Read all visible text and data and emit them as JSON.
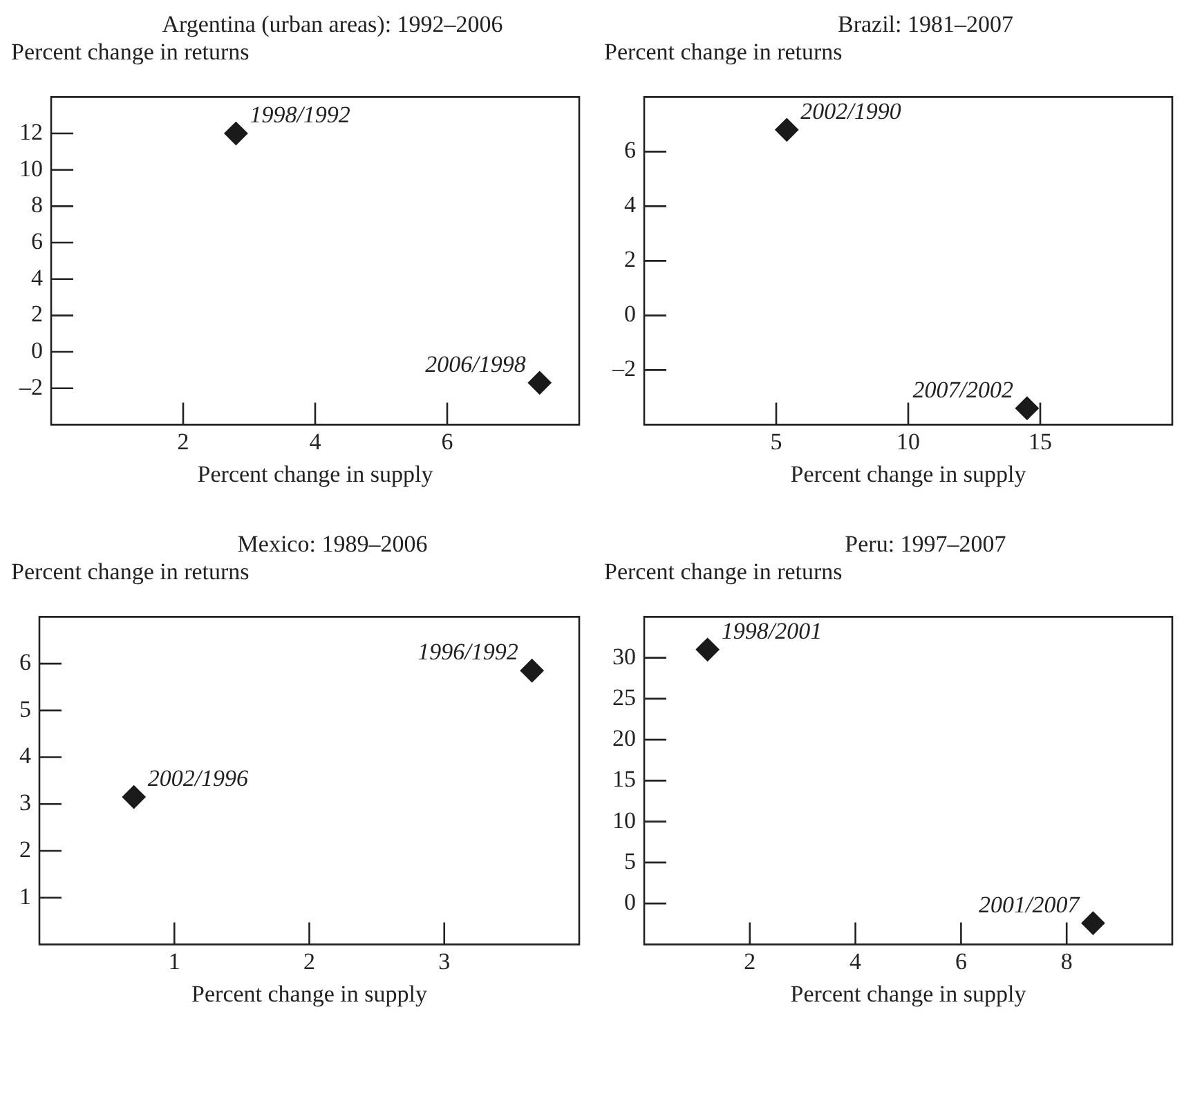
{
  "chart_data": [
    {
      "type": "scatter",
      "title": "Argentina (urban areas): 1992–2006",
      "xlabel": "Percent change in supply",
      "ylabel": "Percent change in returns",
      "marker": "diamond",
      "grid": false,
      "legend": false,
      "series": [
        {
          "color": "#1a1a1a",
          "x": [
            2.8,
            7.4
          ],
          "values": [
            12,
            -1.7
          ]
        }
      ],
      "xlim": [
        0,
        8
      ],
      "xticks": [
        2,
        4,
        6
      ],
      "ylim": [
        -4,
        14
      ],
      "yticks": [
        {
          "value": -2,
          "label": "–2"
        },
        0,
        2,
        4,
        6,
        8,
        10,
        12
      ],
      "annotations": [
        {
          "text": "1998/1992",
          "x": 2.8,
          "y": 12
        },
        {
          "text": "2006/1998",
          "x": 7.4,
          "y": -1.7
        }
      ]
    },
    {
      "type": "scatter",
      "title": "Brazil: 1981–2007",
      "xlabel": "Percent change in supply",
      "ylabel": "Percent change in returns",
      "marker": "diamond",
      "grid": false,
      "legend": false,
      "series": [
        {
          "color": "#1a1a1a",
          "x": [
            5.4,
            14.5
          ],
          "values": [
            6.8,
            -3.4
          ]
        }
      ],
      "xlim": [
        0,
        20
      ],
      "xticks": [
        5,
        10,
        15
      ],
      "ylim": [
        -4,
        8
      ],
      "yticks": [
        {
          "value": -2,
          "label": "–2"
        },
        0,
        2,
        4,
        6
      ],
      "annotations": [
        {
          "text": "2002/1990",
          "x": 5.4,
          "y": 6.8
        },
        {
          "text": "2007/2002",
          "x": 14.5,
          "y": -3.4
        }
      ]
    },
    {
      "type": "scatter",
      "title": "Mexico: 1989–2006",
      "xlabel": "Percent change in supply",
      "ylabel": "Percent change in returns",
      "marker": "diamond",
      "grid": false,
      "legend": false,
      "series": [
        {
          "color": "#1a1a1a",
          "x": [
            0.7,
            3.65
          ],
          "values": [
            3.15,
            5.85
          ]
        }
      ],
      "xlim": [
        0,
        4
      ],
      "xticks": [
        1,
        2,
        3
      ],
      "ylim": [
        0,
        7
      ],
      "yticks": [
        1,
        2,
        3,
        4,
        5,
        6
      ],
      "annotations": [
        {
          "text": "2002/1996",
          "x": 0.7,
          "y": 3.15
        },
        {
          "text": "1996/1992",
          "x": 3.65,
          "y": 5.85
        }
      ]
    },
    {
      "type": "scatter",
      "title": "Peru: 1997–2007",
      "xlabel": "Percent change in supply",
      "ylabel": "Percent change in returns",
      "marker": "diamond",
      "grid": false,
      "legend": false,
      "series": [
        {
          "color": "#1a1a1a",
          "x": [
            1.2,
            8.5
          ],
          "values": [
            31,
            -2.4
          ]
        }
      ],
      "xlim": [
        0,
        10
      ],
      "xticks": [
        2,
        4,
        6,
        8
      ],
      "ylim": [
        -5,
        35
      ],
      "yticks": [
        0,
        5,
        10,
        15,
        20,
        25,
        30
      ],
      "annotations": [
        {
          "text": "1998/2001",
          "x": 1.2,
          "y": 31
        },
        {
          "text": "2001/2007",
          "x": 8.5,
          "y": -2.4
        }
      ]
    }
  ]
}
